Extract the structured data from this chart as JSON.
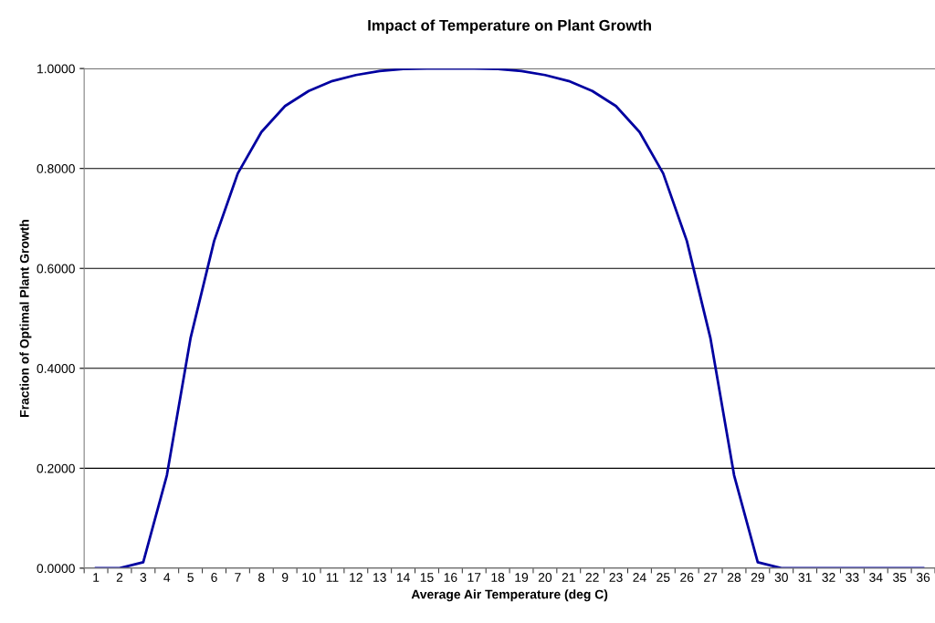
{
  "chart_data": {
    "type": "line",
    "title": "Impact of Temperature on Plant Growth",
    "xlabel": "Average Air Temperature (deg C)",
    "ylabel": "Fraction of Optimal Plant Growth",
    "categories": [
      "1",
      "2",
      "3",
      "4",
      "5",
      "6",
      "7",
      "8",
      "9",
      "10",
      "11",
      "12",
      "13",
      "14",
      "15",
      "16",
      "17",
      "18",
      "19",
      "20",
      "21",
      "22",
      "23",
      "24",
      "25",
      "26",
      "27",
      "28",
      "29",
      "30",
      "31",
      "32",
      "33",
      "34",
      "35",
      "36"
    ],
    "series": [
      {
        "color": "#0000a0",
        "values": [
          0,
          0,
          0.012,
          0.186,
          0.46,
          0.655,
          0.79,
          0.873,
          0.925,
          0.955,
          0.975,
          0.987,
          0.995,
          0.999,
          1.0,
          1.0,
          1.0,
          0.999,
          0.995,
          0.987,
          0.975,
          0.955,
          0.925,
          0.873,
          0.79,
          0.655,
          0.46,
          0.186,
          0.012,
          0,
          0,
          0,
          0,
          0,
          0,
          0
        ]
      }
    ],
    "ylim": [
      0,
      1
    ],
    "yticks": [
      {
        "value": 0,
        "label": "0.0000"
      },
      {
        "value": 0.2,
        "label": "0.2000"
      },
      {
        "value": 0.4,
        "label": "0.4000"
      },
      {
        "value": 0.6,
        "label": "0.6000"
      },
      {
        "value": 0.8,
        "label": "0.8000"
      },
      {
        "value": 1,
        "label": "1.0000"
      }
    ],
    "grid": "y",
    "marker": "none",
    "line_style": "solid"
  }
}
